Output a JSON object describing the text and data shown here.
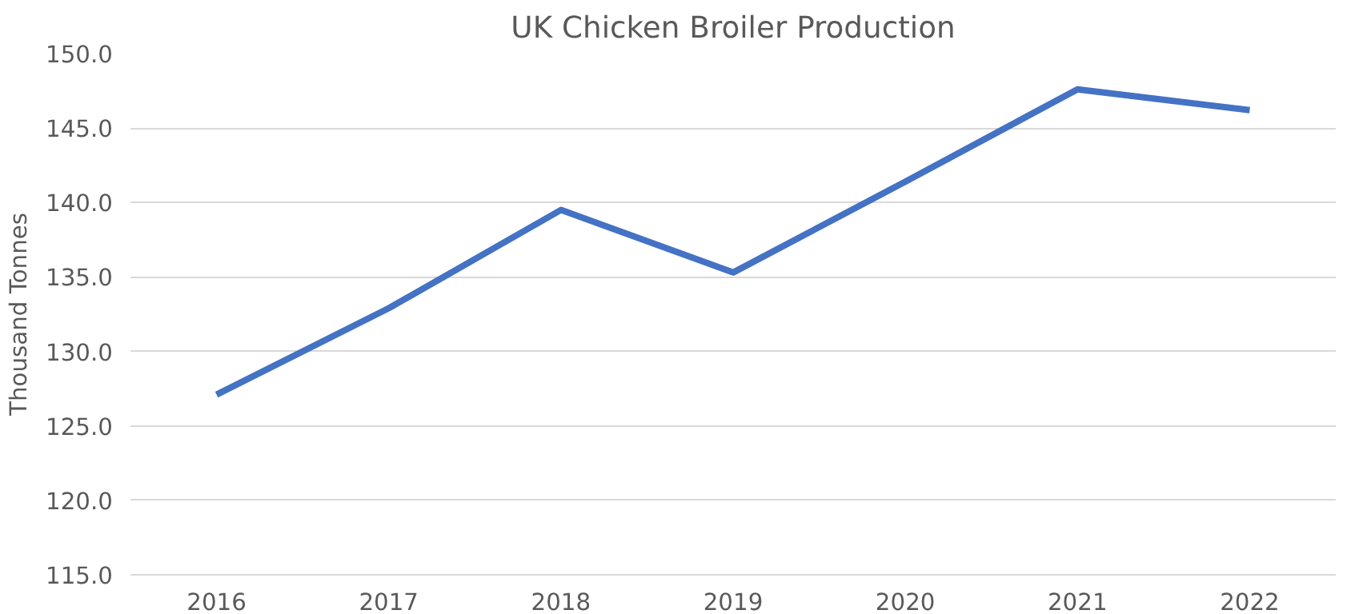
{
  "chart_data": {
    "type": "line",
    "title": "UK Chicken Broiler Production",
    "ylabel": "Thousand Tonnes",
    "categories": [
      "2016",
      "2017",
      "2018",
      "2019",
      "2020",
      "2021",
      "2022"
    ],
    "series": [
      {
        "color": "#4472c4",
        "values": [
          127.1,
          132.9,
          139.5,
          135.3,
          141.4,
          147.6,
          146.2
        ]
      }
    ],
    "ylim": [
      115,
      150
    ],
    "yticks": [
      {
        "value": 115,
        "label": "115.0"
      },
      {
        "value": 120,
        "label": "120.0"
      },
      {
        "value": 125,
        "label": "125.0"
      },
      {
        "value": 130,
        "label": "130.0"
      },
      {
        "value": 135,
        "label": "135.0"
      },
      {
        "value": 140,
        "label": "140.0"
      },
      {
        "value": 145,
        "label": "145.0"
      },
      {
        "value": 150,
        "label": "150.0"
      }
    ],
    "grid": "y"
  }
}
